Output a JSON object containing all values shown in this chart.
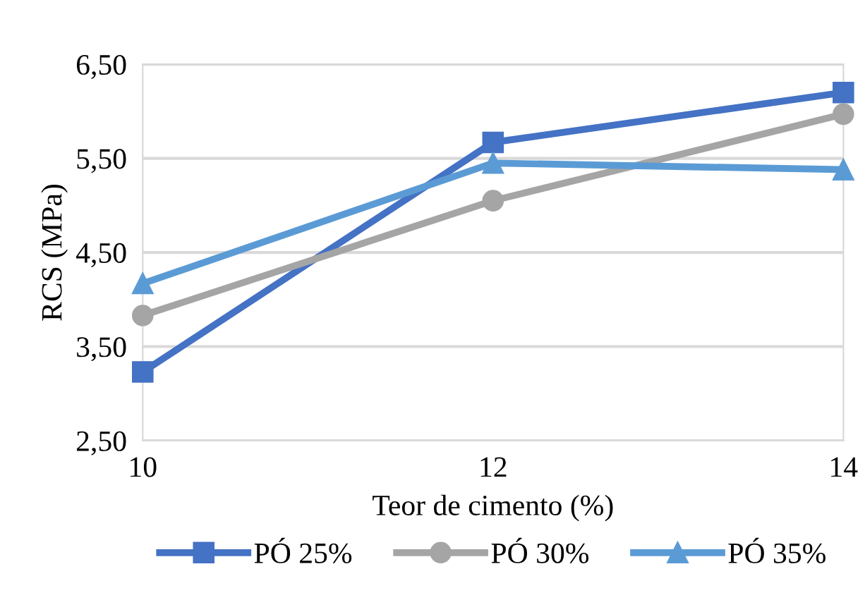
{
  "chart_data": {
    "type": "line",
    "xlabel": "Teor de cimento (%)",
    "ylabel": "RCS (MPa)",
    "x": [
      10,
      12,
      14
    ],
    "xlim": [
      10,
      14
    ],
    "xticks": [
      10,
      12,
      14
    ],
    "ylim": [
      2.5,
      6.5
    ],
    "yticks": [
      {
        "value": 2.5,
        "label": "2,50"
      },
      {
        "value": 3.5,
        "label": "3,50"
      },
      {
        "value": 4.5,
        "label": "4,50"
      },
      {
        "value": 5.5,
        "label": "5,50"
      },
      {
        "value": 6.5,
        "label": "6,50"
      }
    ],
    "grid": "y",
    "legend": "bottom",
    "line_style": "solid",
    "series": [
      {
        "name": "PÓ 25%",
        "color": "#4472c4",
        "marker": "square",
        "values": [
          3.23,
          5.67,
          6.2
        ]
      },
      {
        "name": "PÓ 30%",
        "color": "#a5a5a5",
        "marker": "circle",
        "values": [
          3.83,
          5.05,
          5.97
        ]
      },
      {
        "name": "PÓ 35%",
        "color": "#5b9bd5",
        "marker": "triangle",
        "values": [
          4.17,
          5.45,
          5.38
        ]
      }
    ]
  }
}
